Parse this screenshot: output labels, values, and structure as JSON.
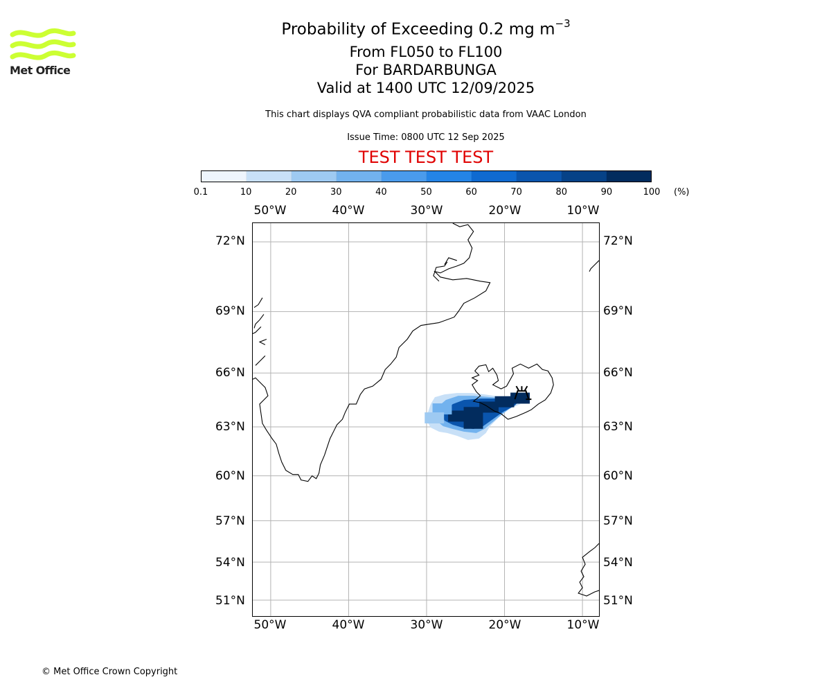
{
  "logo": {
    "text": "Met Office",
    "icon": "met-office-wave-icon",
    "color": "#ccff33"
  },
  "header": {
    "title_main": "Probability of Exceeding 0.2 mg m",
    "title_superscript": "−3",
    "flight_levels": "From FL050 to FL100",
    "volcano": "For BARDARBUNGA",
    "valid_time": "Valid at 1400 UTC 12/09/2025",
    "description": "This chart displays QVA compliant probabilistic data from VAAC London",
    "issue_time": "Issue Time: 0800 UTC 12 Sep 2025",
    "test_banner": "TEST TEST TEST",
    "test_color": "#e00000"
  },
  "colorbar": {
    "ticks": [
      "0.1",
      "10",
      "20",
      "30",
      "40",
      "50",
      "60",
      "70",
      "80",
      "90",
      "100"
    ],
    "unit": "(%)",
    "colors": [
      "#eef5fd",
      "#c8e0f7",
      "#9ecaf2",
      "#72b2ee",
      "#4a9bec",
      "#2484e6",
      "#0f6ad0",
      "#0a55ad",
      "#064287",
      "#022c5e"
    ]
  },
  "map": {
    "lon_labels": [
      "50°W",
      "40°W",
      "30°W",
      "20°W",
      "10°W"
    ],
    "lon_values": [
      -50,
      -40,
      -30,
      -20,
      -10
    ],
    "lat_labels": [
      "72°N",
      "69°N",
      "66°N",
      "63°N",
      "60°N",
      "57°N",
      "54°N",
      "51°N"
    ],
    "lat_values": [
      72,
      69,
      66,
      63,
      60,
      57,
      54,
      51
    ],
    "gridlines": true,
    "volcano_symbol": "volcano-icon",
    "plume": [
      {
        "lon": -18,
        "lat": 64.6,
        "prob": 100
      },
      {
        "lon": -20,
        "lat": 64.4,
        "prob": 95
      },
      {
        "lon": -22,
        "lat": 64.1,
        "prob": 95
      },
      {
        "lon": -24,
        "lat": 63.8,
        "prob": 95
      },
      {
        "lon": -26,
        "lat": 63.6,
        "prob": 92
      },
      {
        "lon": -24,
        "lat": 63.2,
        "prob": 90
      },
      {
        "lon": -28,
        "lat": 64.0,
        "prob": 30
      },
      {
        "lon": -29,
        "lat": 63.5,
        "prob": 20
      }
    ]
  },
  "footer": {
    "copyright": "© Met Office Crown Copyright"
  }
}
